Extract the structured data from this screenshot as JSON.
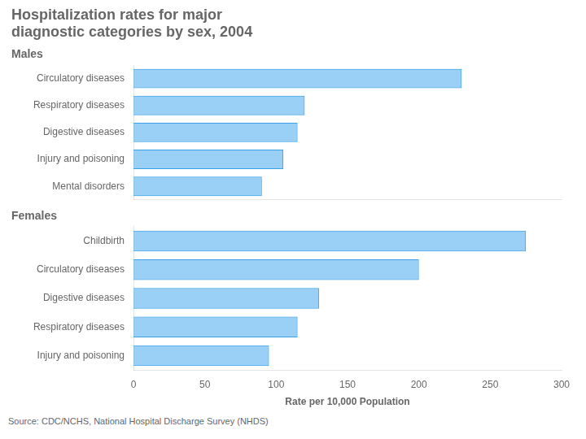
{
  "chart_data": [
    {
      "type": "bar",
      "orientation": "horizontal",
      "title": "Hospitalization rates for major\ndiagnostic categories by sex, 2004",
      "subtitle": "Males",
      "categories": [
        "Circulatory diseases",
        "Respiratory diseases",
        "Digestive diseases",
        "Injury and poisoning",
        "Mental disorders"
      ],
      "values": [
        230,
        120,
        115,
        105,
        90
      ],
      "xlim": [
        0,
        300
      ],
      "tick_labels": "y",
      "grid": false
    },
    {
      "type": "bar",
      "orientation": "horizontal",
      "subtitle": "Females",
      "xlabel": "Rate per 10,000 Population",
      "categories": [
        "Childbirth",
        "Circulatory diseases",
        "Digestive diseases",
        "Respiratory diseases",
        "Injury and poisoning"
      ],
      "values": [
        275,
        200,
        130,
        115,
        95
      ],
      "xlim": [
        0,
        300
      ],
      "xticks": [
        0,
        50,
        100,
        150,
        200,
        250,
        300
      ],
      "annotations": [
        "Source:  CDC/NCHS, National Hospital Discharge Survey (NHDS)"
      ],
      "grid": false
    }
  ]
}
